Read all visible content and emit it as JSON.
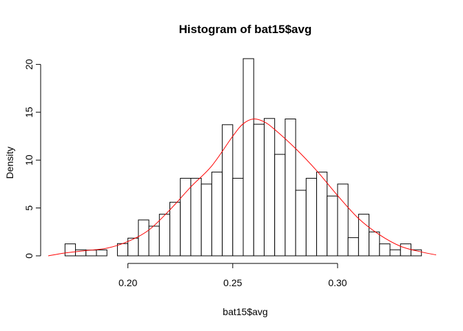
{
  "chart_data": {
    "type": "bar",
    "title": "Histogram of bat15$avg",
    "xlabel": "bat15$avg",
    "ylabel": "Density",
    "xlim": [
      0.162,
      0.347
    ],
    "ylim": [
      0,
      21
    ],
    "x_ticks": [
      0.2,
      0.25,
      0.3
    ],
    "x_tick_labels": [
      "0.20",
      "0.25",
      "0.30"
    ],
    "y_ticks": [
      0,
      5,
      10,
      15,
      20
    ],
    "y_tick_labels": [
      "0",
      "5",
      "10",
      "15",
      "20"
    ],
    "grid": false,
    "legend": "none",
    "bins": {
      "start": 0.17,
      "width": 0.005,
      "densities": [
        1.25,
        0.63,
        0.6,
        0.62,
        0.0,
        1.28,
        1.85,
        3.75,
        3.1,
        4.35,
        5.6,
        8.1,
        8.1,
        7.5,
        8.75,
        13.7,
        8.1,
        20.6,
        13.75,
        14.35,
        10.6,
        14.3,
        6.85,
        8.1,
        8.75,
        6.25,
        7.5,
        1.9,
        4.35,
        2.5,
        1.25,
        0.63,
        1.25,
        0.63
      ]
    },
    "density_curve": {
      "color": "#ff0000",
      "x": [
        0.162,
        0.17,
        0.18,
        0.19,
        0.2,
        0.21,
        0.22,
        0.23,
        0.24,
        0.25,
        0.255,
        0.26,
        0.265,
        0.27,
        0.28,
        0.29,
        0.3,
        0.31,
        0.32,
        0.33,
        0.34,
        0.347
      ],
      "y": [
        0.0,
        0.3,
        0.55,
        0.8,
        1.5,
        2.7,
        4.8,
        7.2,
        9.4,
        12.5,
        13.8,
        14.3,
        14.0,
        13.2,
        11.2,
        8.9,
        6.3,
        3.9,
        2.2,
        1.0,
        0.4,
        0.1
      ]
    }
  }
}
